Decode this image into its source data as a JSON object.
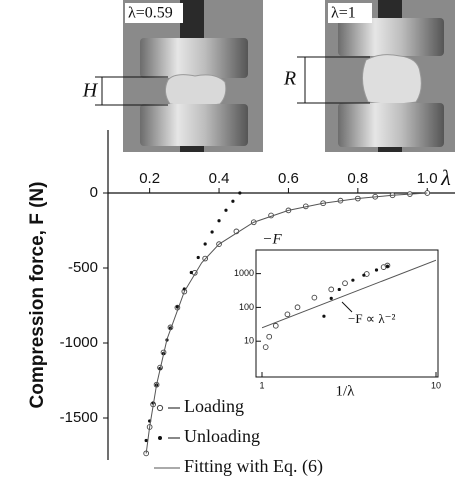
{
  "photos": [
    {
      "label": "λ=0.59",
      "dimension": "H"
    },
    {
      "label": "λ=1",
      "dimension": "R"
    }
  ],
  "chart_data": [
    {
      "type": "scatter",
      "y_label": "Compression force, F (N)",
      "x_label": "λ",
      "legend": "lower left",
      "xlim": [
        0.08,
        1.08
      ],
      "xticks": [
        0.2,
        0.4,
        0.6,
        0.8,
        {
          "value": 1,
          "label": "1.0"
        }
      ],
      "ylim": [
        -1780,
        420
      ],
      "yticks": [
        0,
        -500,
        -1000,
        -1500
      ],
      "series": [
        {
          "name": "Loading",
          "color": "#444444",
          "marker": "open-circle",
          "x": [
            0.19,
            0.2,
            0.21,
            0.22,
            0.23,
            0.24,
            0.26,
            0.28,
            0.3,
            0.33,
            0.36,
            0.4,
            0.45,
            0.5,
            0.55,
            0.6,
            0.65,
            0.7,
            0.75,
            0.8,
            0.85,
            0.9,
            0.95,
            1.0
          ],
          "values": [
            -1736,
            -1560,
            -1409,
            -1278,
            -1164,
            -1063,
            -896,
            -764,
            -657,
            -532,
            -437,
            -341,
            -256,
            -195,
            -150,
            -116,
            -89,
            -68,
            -51,
            -37,
            -25,
            -15,
            -7,
            0
          ]
        },
        {
          "name": "Unloading",
          "color": "#111111",
          "marker": "dot",
          "x": [
            0.19,
            0.2,
            0.21,
            0.22,
            0.23,
            0.24,
            0.25,
            0.26,
            0.28,
            0.3,
            0.32,
            0.34,
            0.36,
            0.38,
            0.4,
            0.42,
            0.44,
            0.46
          ],
          "values": [
            -1650,
            -1520,
            -1400,
            -1280,
            -1170,
            -1070,
            -980,
            -900,
            -760,
            -640,
            -530,
            -430,
            -340,
            -260,
            -185,
            -115,
            -55,
            0
          ]
        },
        {
          "name": "Fitting with Eq. (6)",
          "color": "#555555",
          "marker": "line",
          "x": [
            0.19,
            0.2,
            0.22,
            0.25,
            0.3,
            0.35,
            0.4,
            0.5,
            0.6,
            0.7,
            0.8,
            0.9,
            1.0
          ],
          "values": [
            -1736,
            -1560,
            -1278,
            -975,
            -657,
            -465,
            -341,
            -195,
            -116,
            -68,
            -37,
            -15,
            0
          ]
        }
      ]
    },
    {
      "type": "scatter",
      "xscale": "log",
      "yscale": "log",
      "x_label": "1/λ",
      "y_label": "−F",
      "annotation": "−F ∝ λ⁻²",
      "xlim": [
        1,
        10
      ],
      "xticks": [
        1,
        10
      ],
      "ylim": [
        1,
        5000
      ],
      "yticks": [
        10,
        100,
        1000
      ],
      "series": [
        {
          "color": "#444444",
          "marker": "open-circle",
          "x": [
            1.05,
            1.1,
            1.2,
            1.4,
            1.6,
            2,
            2.5,
            3,
            4,
            5,
            5.26
          ],
          "values": [
            6.7,
            13.6,
            28.6,
            62.4,
            101,
            195,
            341,
            520,
            975,
            1560,
            1736
          ]
        },
        {
          "color": "#111111",
          "marker": "dot",
          "x": [
            2.27,
            2.5,
            2.78,
            3.33,
            3.85,
            4.55,
            5.26
          ],
          "values": [
            55,
            185,
            340,
            640,
            900,
            1280,
            1650
          ]
        },
        {
          "color": "#555555",
          "marker": "line",
          "x": [
            1,
            10
          ],
          "values": [
            25,
            2500
          ]
        }
      ]
    }
  ]
}
